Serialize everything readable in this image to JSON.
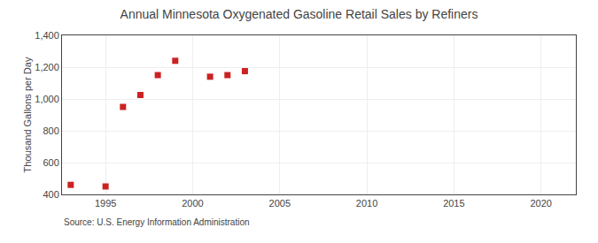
{
  "chart_data": {
    "type": "scatter",
    "title": "Annual Minnesota Oxygenated Gasoline Retail Sales by Refiners",
    "ylabel": "Thousand Gallons per Day",
    "annotation": "Source: U.S. Energy Information Administration",
    "x": [
      1993,
      1995,
      1996,
      1997,
      1998,
      1999,
      2001,
      2002,
      2003
    ],
    "values": [
      460,
      450,
      950,
      1025,
      1150,
      1240,
      1140,
      1150,
      1175
    ],
    "color": "#cc2222",
    "marker": "square",
    "xlim": [
      1992.5,
      2022
    ],
    "ylim": [
      400,
      1400
    ],
    "xticks": [
      1995,
      2000,
      2005,
      2010,
      2015,
      2020
    ],
    "yticks": [
      400,
      600,
      800,
      {
        "value": 1000,
        "label": "1,000"
      },
      {
        "value": 1200,
        "label": "1,200"
      },
      {
        "value": 1400,
        "label": "1,400"
      }
    ],
    "grid": true
  }
}
